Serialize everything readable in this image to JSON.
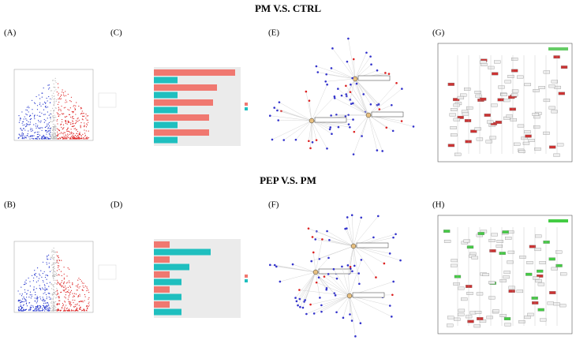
{
  "figure": {
    "rows": [
      {
        "title": "PM V.S. CTRL",
        "panels": [
          "(A)",
          "(C)",
          "(E)",
          "(G)"
        ]
      },
      {
        "title": "PEP V.S. PM",
        "panels": [
          "(B)",
          "(D)",
          "(F)",
          "(H)"
        ]
      }
    ]
  }
}
